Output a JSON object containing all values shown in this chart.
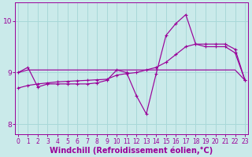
{
  "title": "",
  "xlabel": "Windchill (Refroidissement éolien,°C)",
  "background_color": "#caeaea",
  "grid_color": "#a8d8d8",
  "line_color": "#990099",
  "x_values": [
    0,
    1,
    2,
    3,
    4,
    5,
    6,
    7,
    8,
    9,
    10,
    11,
    12,
    13,
    14,
    15,
    16,
    17,
    18,
    19,
    20,
    21,
    22,
    23
  ],
  "line1_y": [
    9.0,
    9.05,
    9.05,
    9.05,
    9.05,
    9.05,
    9.05,
    9.05,
    9.05,
    9.05,
    9.05,
    9.05,
    9.05,
    9.05,
    9.05,
    9.05,
    9.05,
    9.05,
    9.05,
    9.05,
    9.05,
    9.05,
    9.05,
    8.85
  ],
  "line2_y": [
    8.7,
    8.75,
    8.78,
    8.8,
    8.82,
    8.83,
    8.84,
    8.85,
    8.86,
    8.87,
    8.95,
    8.98,
    9.0,
    9.05,
    9.1,
    9.2,
    9.35,
    9.5,
    9.55,
    9.55,
    9.55,
    9.55,
    9.45,
    8.85
  ],
  "line3_y": [
    9.0,
    9.1,
    8.72,
    8.78,
    8.78,
    8.78,
    8.78,
    8.78,
    8.8,
    8.85,
    9.05,
    9.0,
    8.55,
    8.2,
    8.98,
    9.72,
    9.95,
    10.12,
    9.55,
    9.5,
    9.5,
    9.5,
    9.38,
    8.85
  ],
  "ylim": [
    7.8,
    10.35
  ],
  "yticks": [
    8,
    9,
    10
  ],
  "xticks": [
    0,
    1,
    2,
    3,
    4,
    5,
    6,
    7,
    8,
    9,
    10,
    11,
    12,
    13,
    14,
    15,
    16,
    17,
    18,
    19,
    20,
    21,
    22,
    23
  ],
  "tick_fontsize": 5.5,
  "label_fontsize": 7.0
}
